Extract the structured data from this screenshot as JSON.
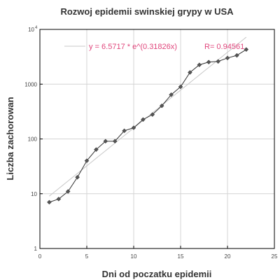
{
  "chart_data": {
    "type": "line",
    "title": "Rozwoj epidemii swinskiej grypy w USA",
    "xlabel": "Dni od poczatku epidemii",
    "ylabel": "Liczba zachorowan",
    "xlim": [
      0,
      25
    ],
    "ylim": [
      1,
      10000
    ],
    "yscale": "log",
    "grid": true,
    "x_ticks": [
      0,
      5,
      10,
      15,
      20,
      25
    ],
    "x_tick_labels": [
      "0",
      "5",
      "10",
      "15",
      "20",
      "25"
    ],
    "y_ticks": [
      1,
      10,
      100,
      1000,
      10000
    ],
    "y_tick_labels": [
      "1",
      "10",
      "100",
      "1000"
    ],
    "y_top_tick": {
      "base": "10",
      "exponent": "4"
    },
    "series": [
      {
        "x": [
          1,
          2,
          3,
          4,
          5,
          6,
          7,
          8,
          9,
          10,
          11,
          12,
          13,
          14,
          15,
          16,
          17,
          18,
          19,
          20,
          21,
          22
        ],
        "y": [
          7,
          8,
          11,
          20,
          40,
          64,
          91,
          91,
          141,
          160,
          226,
          279,
          403,
          642,
          896,
          1639,
          2254,
          2532,
          2600,
          3009,
          3352,
          4298
        ],
        "marker": "diamond",
        "color": "#333333"
      }
    ],
    "fit": {
      "a": 6.5717,
      "b": 0.31826,
      "x_range": [
        1,
        22
      ],
      "color": "#c8c8c8",
      "equation_label": "y = 6.5717 * e^(0.31826x)",
      "r_label": "R= 0.94561",
      "label_color": "#e0457b",
      "legend_placement": "top"
    },
    "colors": {
      "frame": "#000000",
      "grid": "#d4d4d4",
      "line": "#333333",
      "marker": "#555555"
    }
  }
}
